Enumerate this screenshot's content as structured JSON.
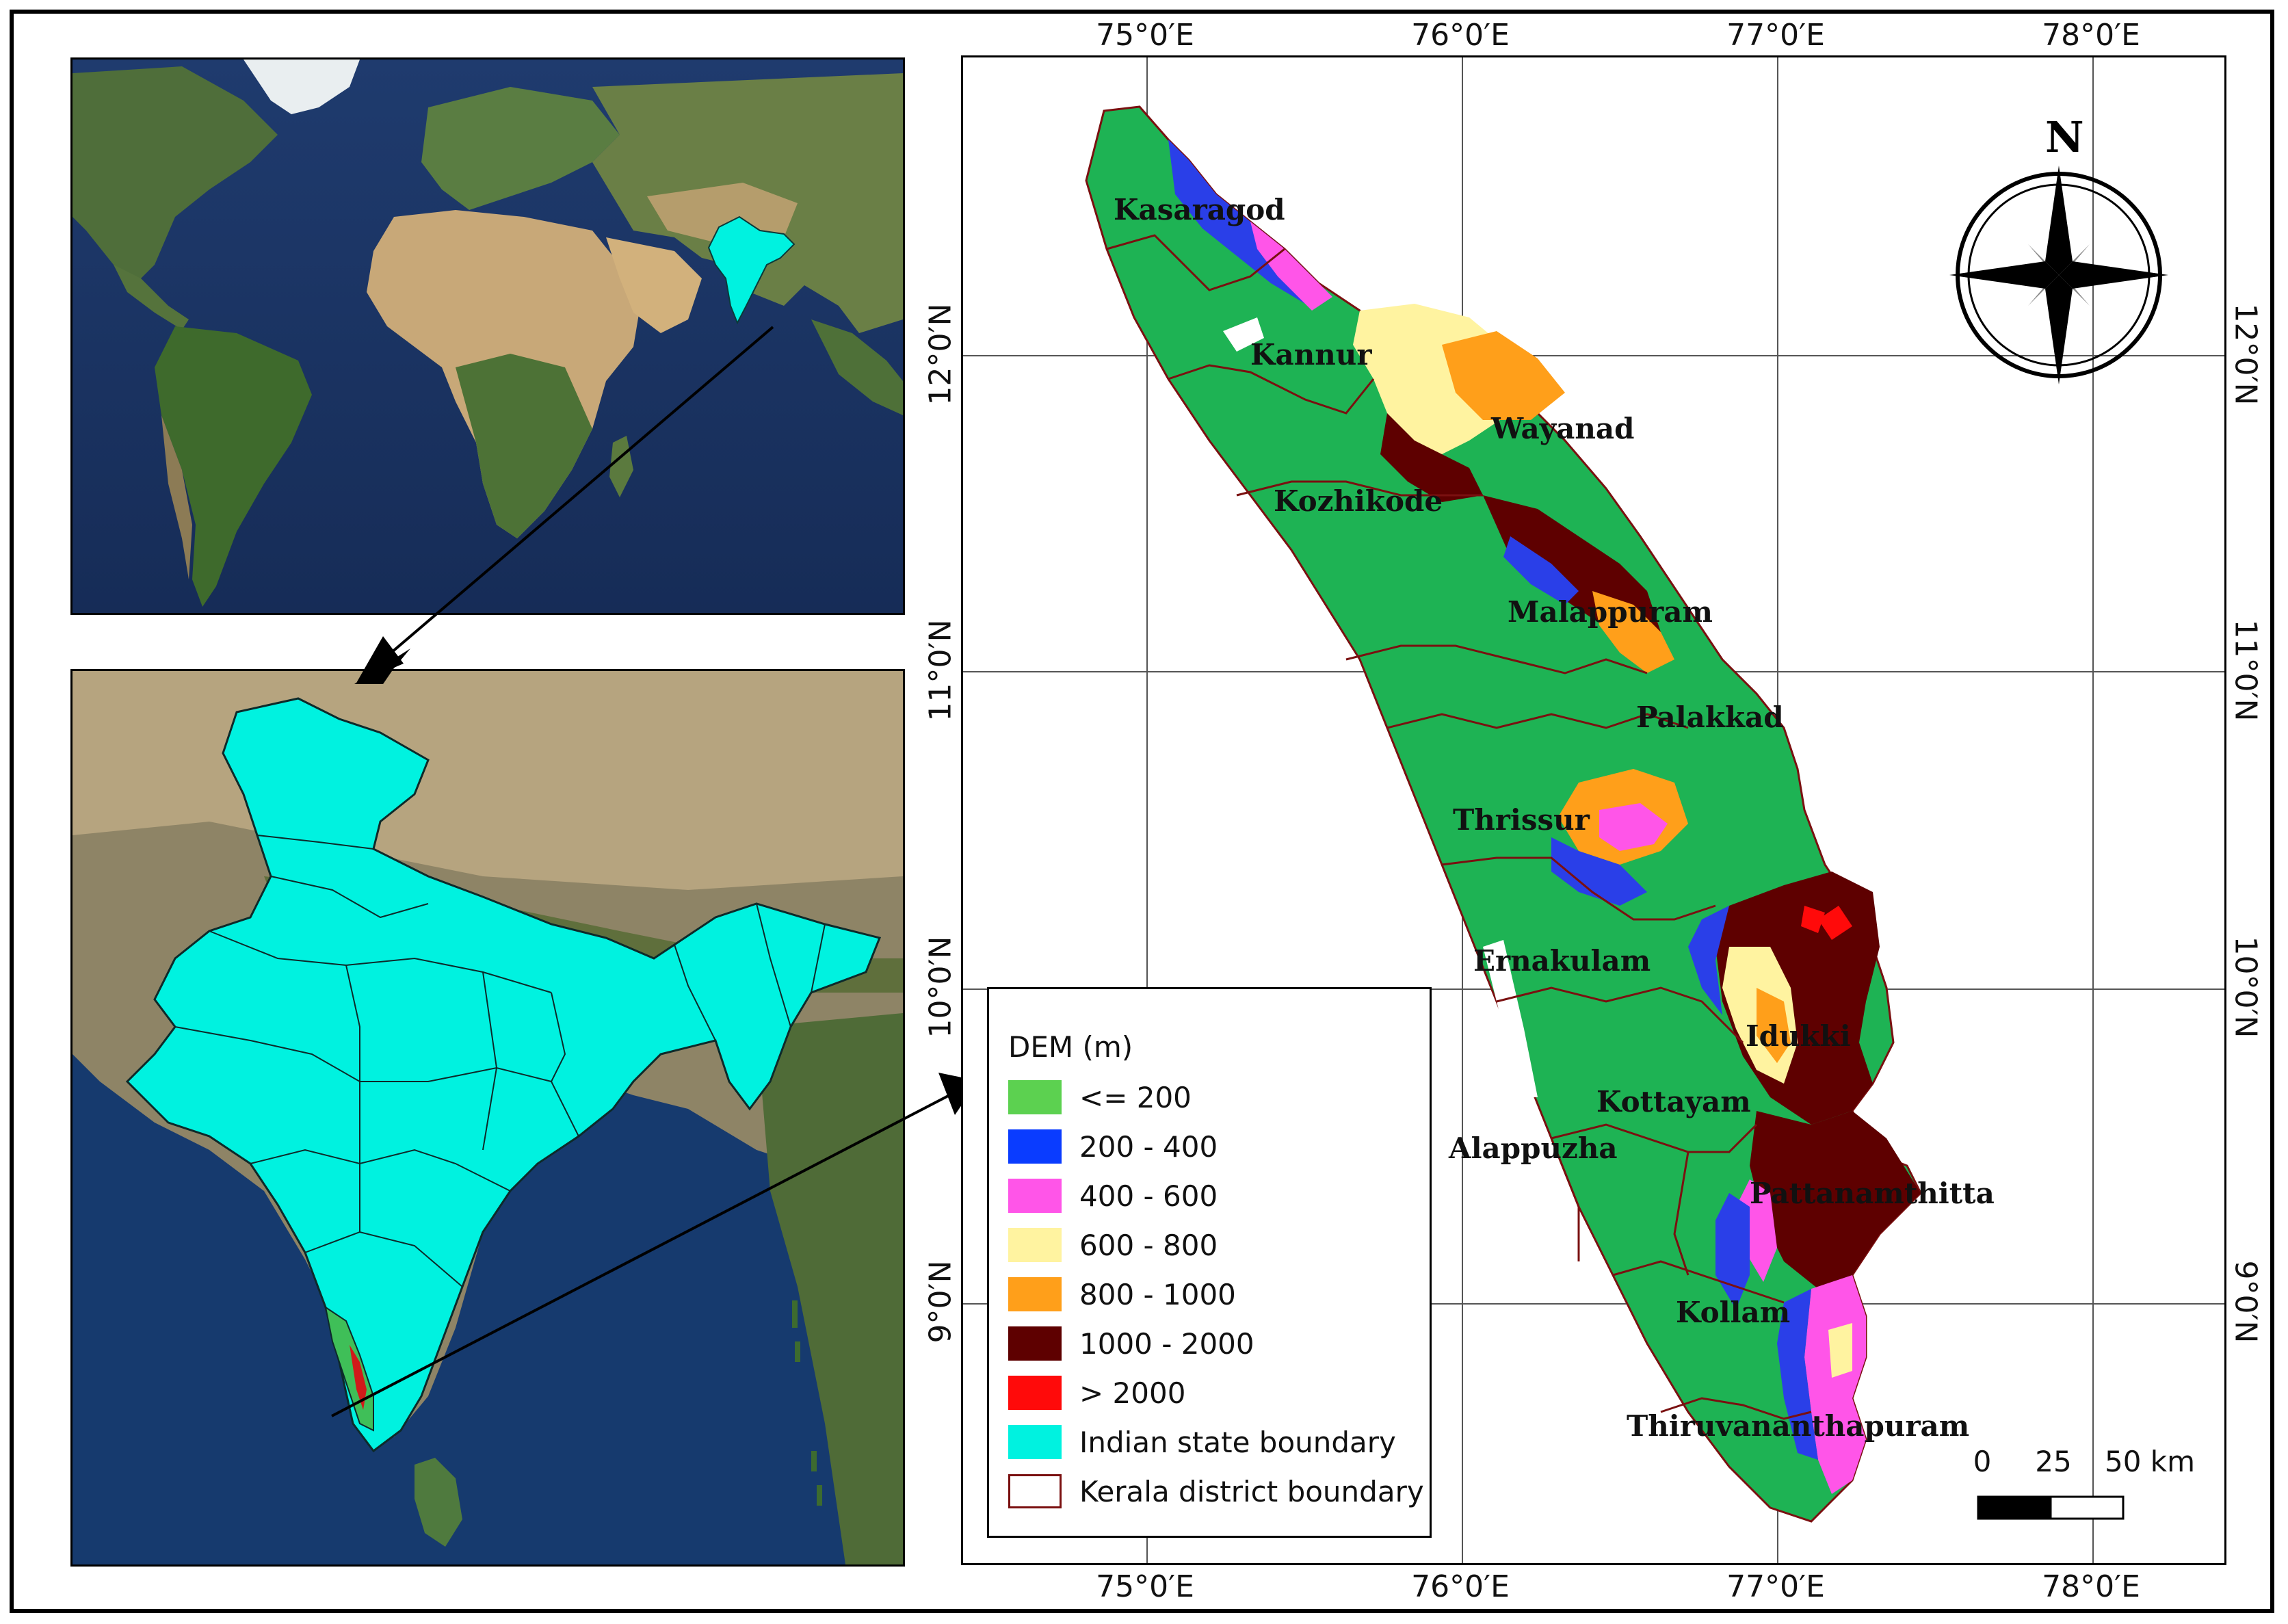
{
  "legend": {
    "title": "DEM (m)",
    "items": [
      {
        "label": "<= 200",
        "color": "#5cd150",
        "border": "#5cd150"
      },
      {
        "label": "200 - 400",
        "color": "#0a3cff",
        "border": "#0a3cff"
      },
      {
        "label": "400 - 600",
        "color": "#ff55e8",
        "border": "#ff55e8"
      },
      {
        "label": "600 - 800",
        "color": "#fff3a0",
        "border": "#fff3a0"
      },
      {
        "label": "800 - 1000",
        "color": "#ff9f1a",
        "border": "#ff9f1a"
      },
      {
        "label": "1000 - 2000",
        "color": "#5e0000",
        "border": "#5e0000"
      },
      {
        "label": "> 2000",
        "color": "#ff0a0a",
        "border": "#ff0a0a"
      },
      {
        "label": "Indian state boundary",
        "color": "#00f2e0",
        "border": "#00f2e0"
      },
      {
        "label": "Kerala district boundary",
        "color": "#ffffff",
        "border": "#7a1010"
      }
    ]
  },
  "graticule": {
    "longitudes": [
      "75°0′E",
      "76°0′E",
      "77°0′E",
      "78°0′E"
    ],
    "latitudes": [
      "12°0′N",
      "11°0′N",
      "10°0′N",
      "9°0′N"
    ]
  },
  "districts": [
    "Kasaragod",
    "Kannur",
    "Wayanad",
    "Kozhikode",
    "Malappuram",
    "Palakkad",
    "Thrissur",
    "Ernakulam",
    "Idukki",
    "Kottayam",
    "Alappuzha",
    "Pattanamthitta",
    "Kollam",
    "Thiruvananthapuram"
  ],
  "north_arrow": {
    "label": "N"
  },
  "scale_bar": {
    "labels": [
      "0",
      "25",
      "50 km"
    ]
  }
}
